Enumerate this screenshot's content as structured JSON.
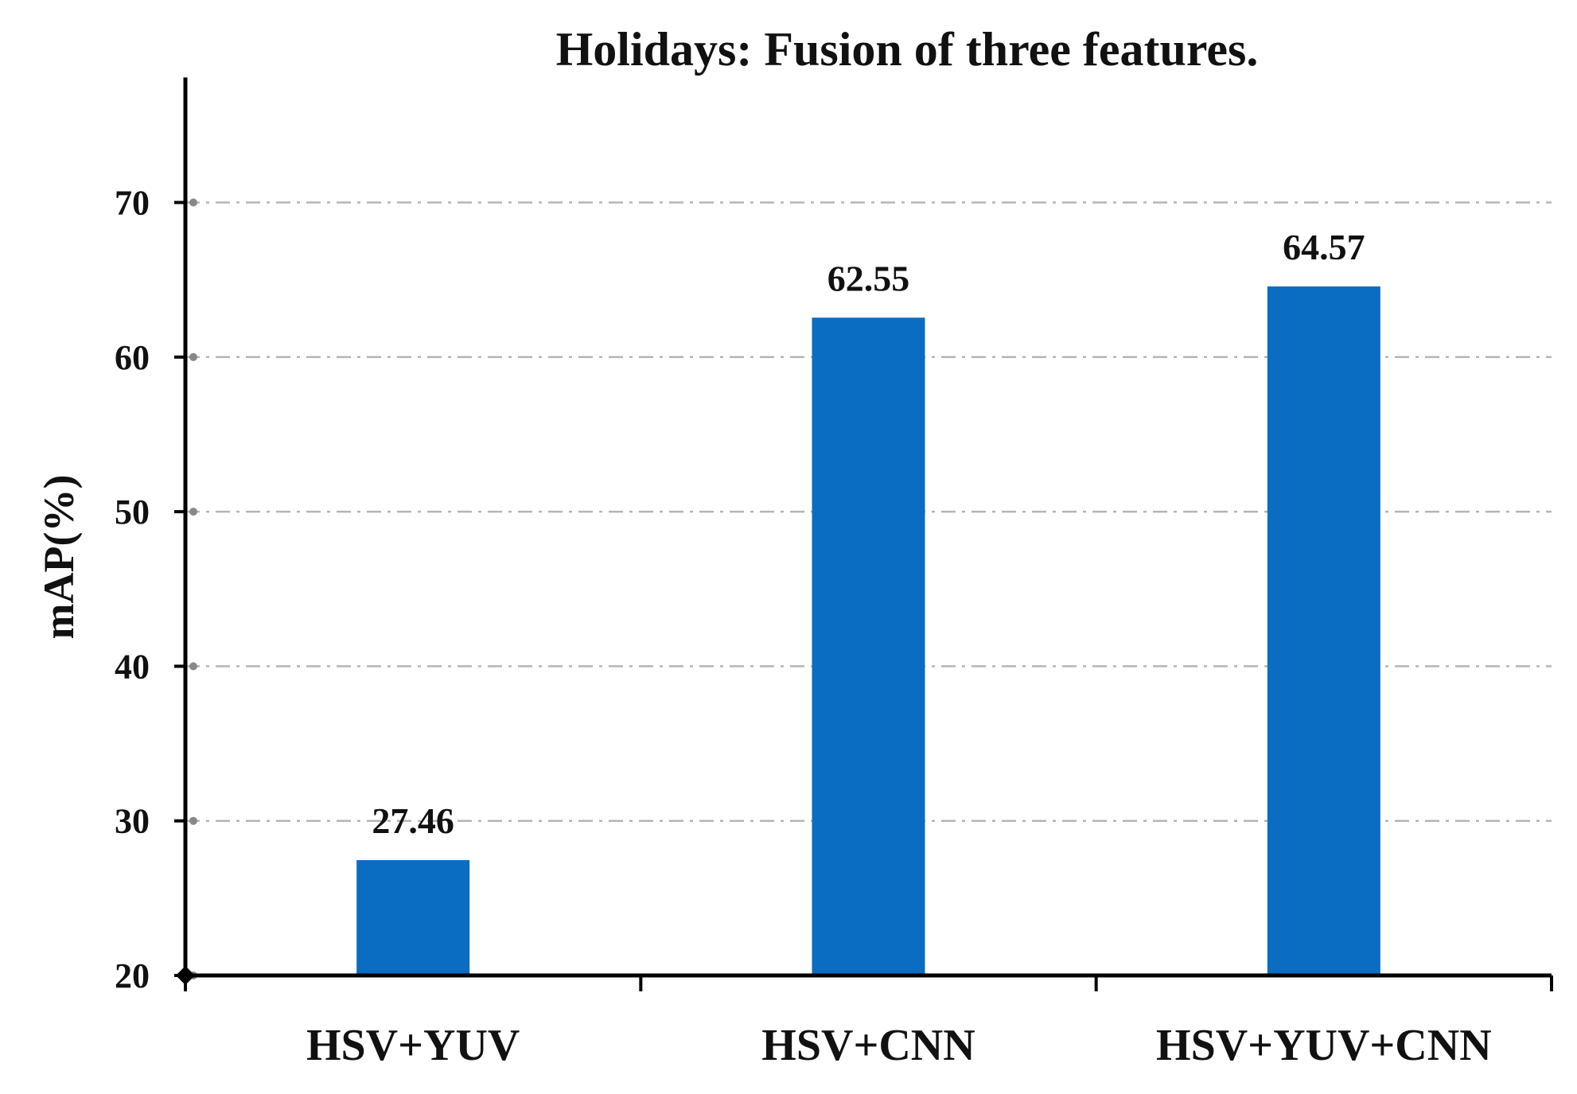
{
  "chart_data": {
    "type": "bar",
    "title": "Holidays: Fusion of three features.",
    "xlabel": "",
    "ylabel": "mAP(%)",
    "categories": [
      "HSV+YUV",
      "HSV+CNN",
      "HSV+YUV+CNN"
    ],
    "series": [
      {
        "values": [
          27.46,
          62.55,
          64.57
        ]
      }
    ],
    "data_labels": [
      "27.46",
      "62.55",
      "64.57"
    ],
    "ylim": [
      20,
      75
    ],
    "yticks": [
      20,
      30,
      40,
      50,
      60,
      70
    ],
    "ytick_labels": [
      "20",
      "30",
      "40",
      "50",
      "60",
      "70"
    ],
    "grid": "horizontal dash-dot",
    "legend": "none",
    "colors": {
      "bar": "#0a6dc2",
      "grid": "#b5b5b5",
      "axis": "#000000",
      "text": "#111111"
    }
  }
}
